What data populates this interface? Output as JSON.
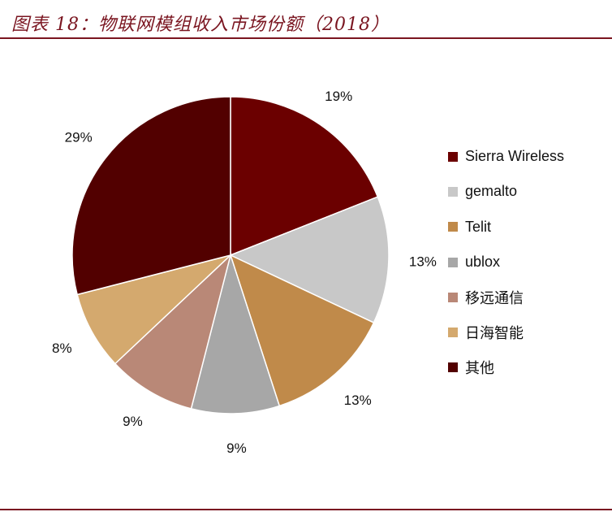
{
  "title": "图表 18：物联网模组收入市场份额（2018）",
  "chart_data": {
    "type": "pie",
    "legend_position": "right",
    "slices": [
      {
        "name": "Sierra Wireless",
        "value": 19,
        "label": "19%",
        "color": "#6b0000"
      },
      {
        "name": "gemalto",
        "value": 13,
        "label": "13%",
        "color": "#c8c8c8"
      },
      {
        "name": "Telit",
        "value": 13,
        "label": "13%",
        "color": "#c08a4a"
      },
      {
        "name": "ublox",
        "value": 9,
        "label": "9%",
        "color": "#a7a7a7"
      },
      {
        "name": "移远通信",
        "value": 9,
        "label": "9%",
        "color": "#b98877"
      },
      {
        "name": "日海智能",
        "value": 8,
        "label": "8%",
        "color": "#d4a96e"
      },
      {
        "name": "其他",
        "value": 29,
        "label": "29%",
        "color": "#520000"
      }
    ]
  }
}
